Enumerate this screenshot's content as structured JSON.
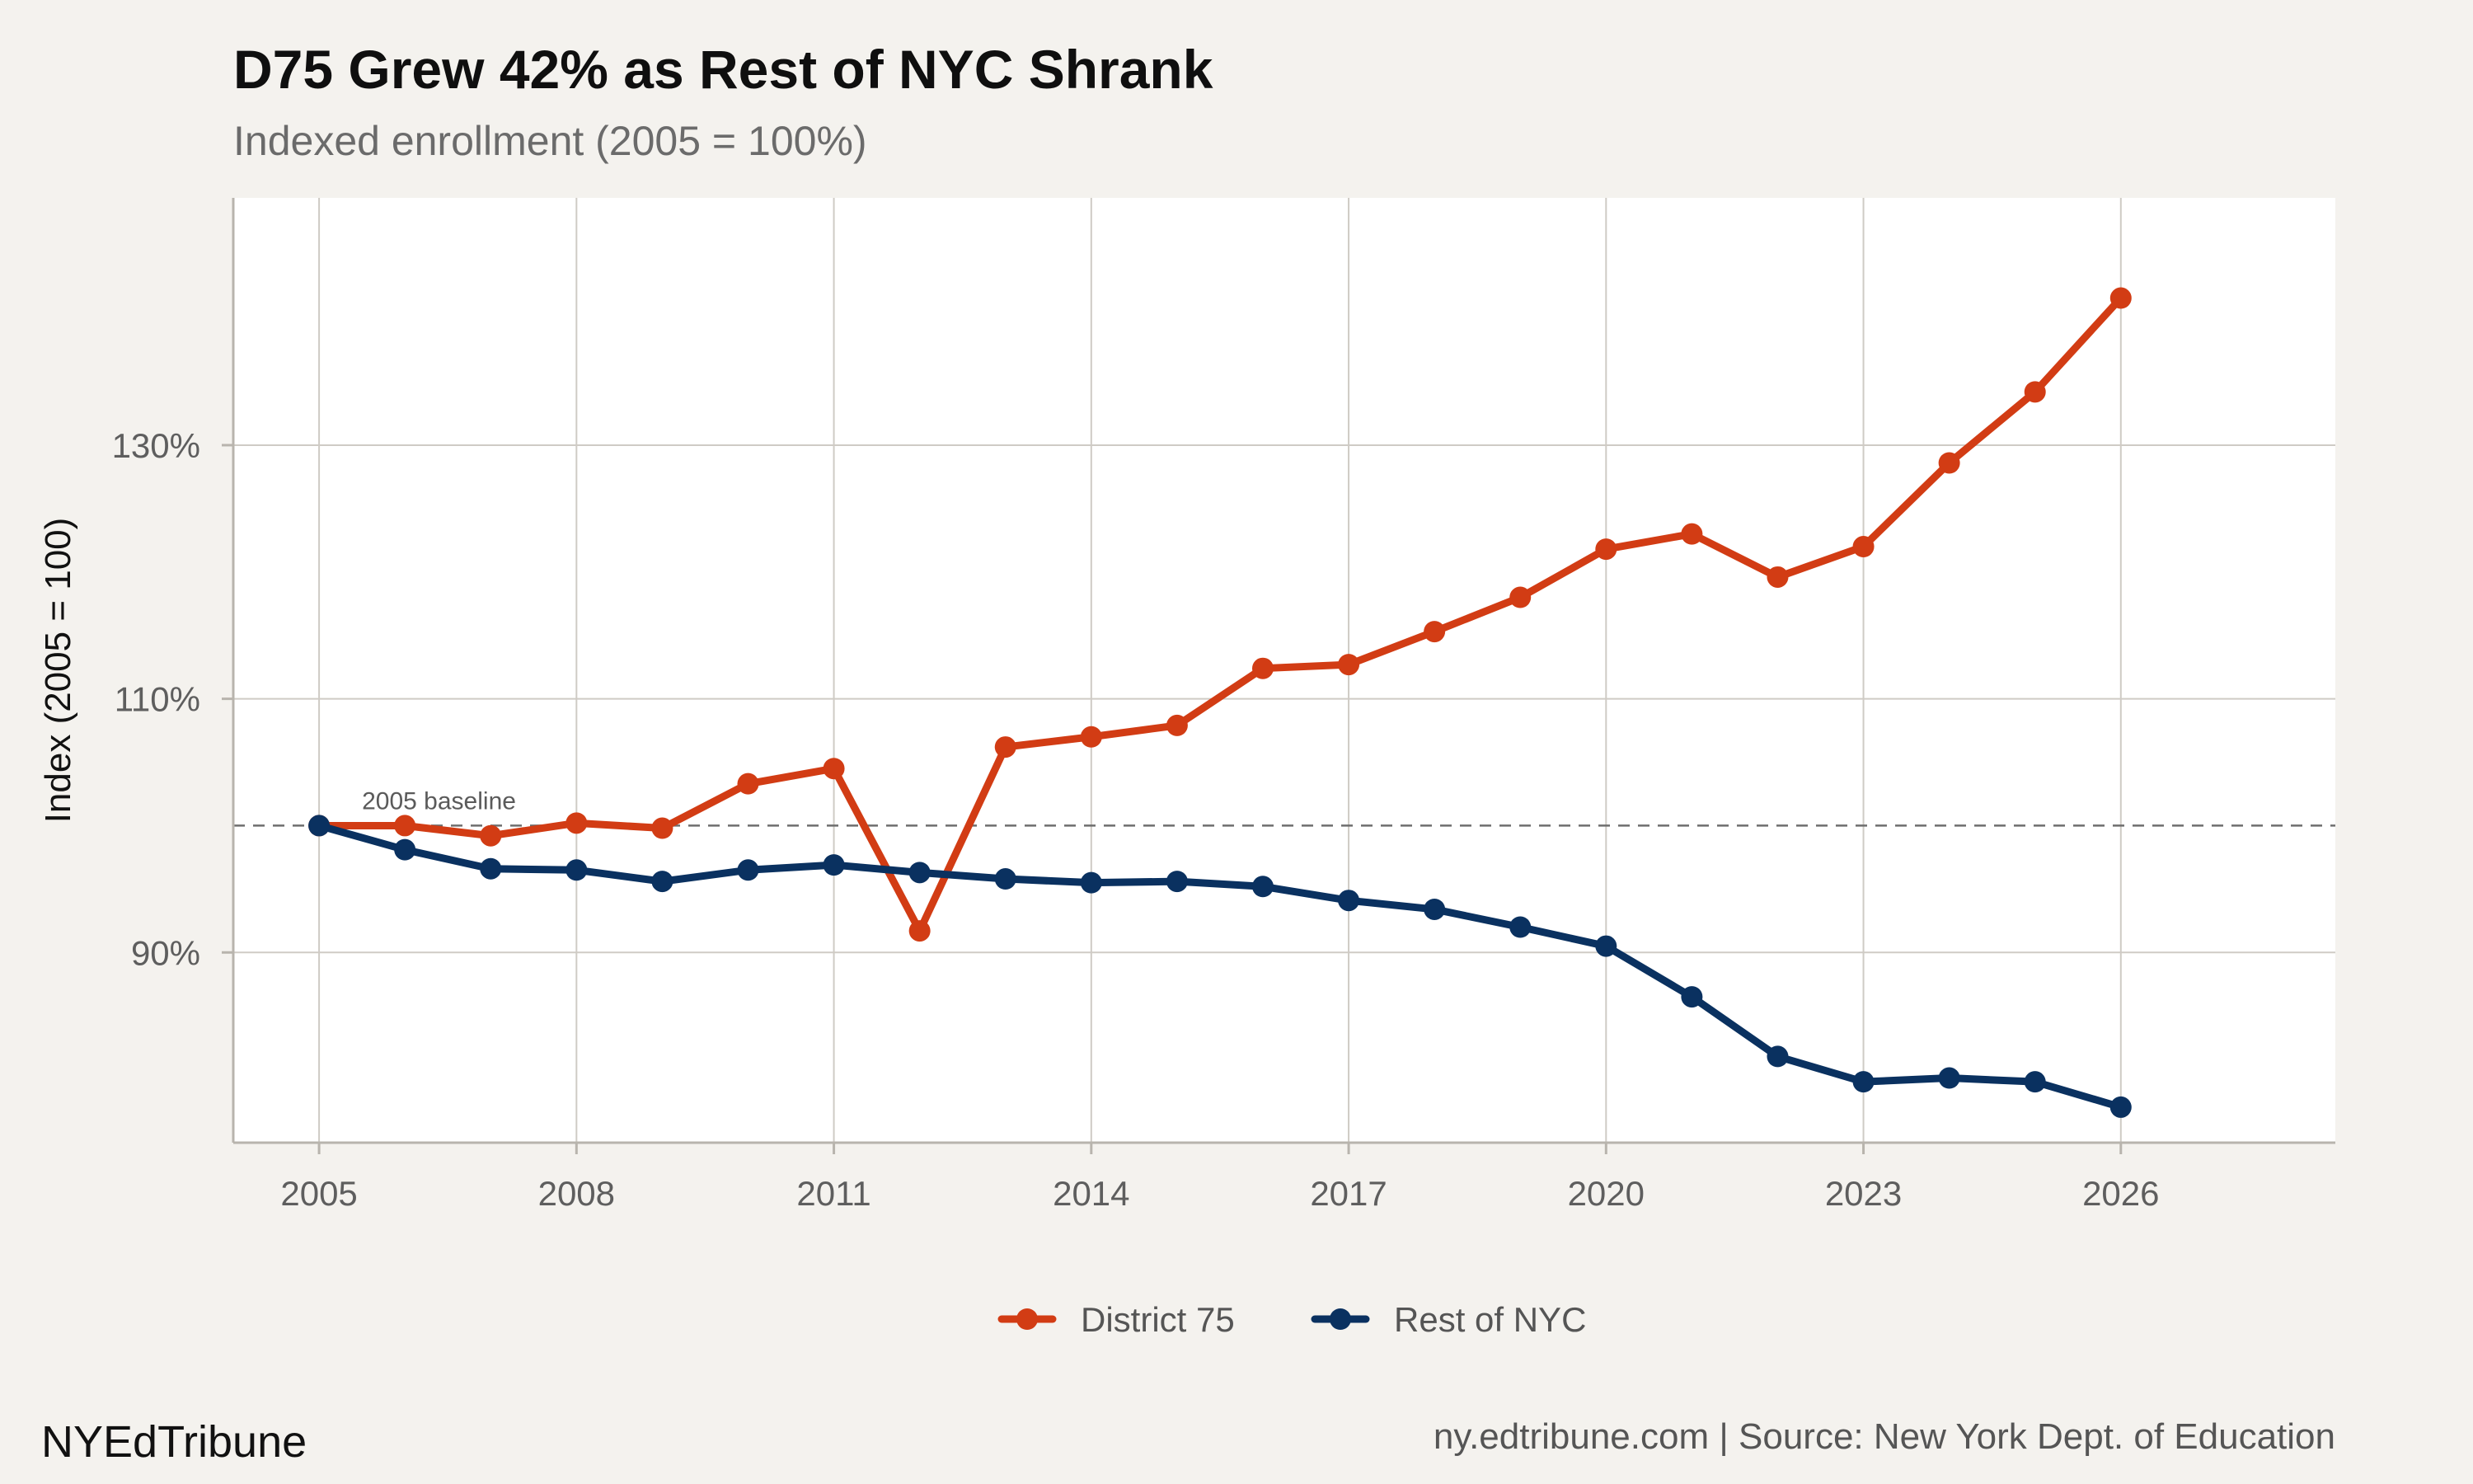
{
  "header": {
    "title": "D75 Grew 42% as Rest of NYC Shrank",
    "subtitle": "Indexed enrollment (2005 = 100%)"
  },
  "footer": {
    "brand": "NYEdTribune",
    "source": "ny.edtribune.com | Source: New York Dept. of Education"
  },
  "colors": {
    "district75": "#d23c14",
    "rest_of_nyc": "#0a3160",
    "panel": "#ffffff",
    "background": "#f4f2ee",
    "grid": "#cfcbc5",
    "baseline": "#6e6e6e"
  },
  "chart_data": {
    "type": "line",
    "title": "D75 Grew 42% as Rest of NYC Shrank",
    "subtitle": "Indexed enrollment (2005 = 100%)",
    "xlabel": "",
    "ylabel": "Index (2005 = 100)",
    "xlim": [
      2004,
      2028.5
    ],
    "ylim": [
      75,
      149.5
    ],
    "x_ticks": [
      2005,
      2008,
      2011,
      2014,
      2017,
      2020,
      2023,
      2026
    ],
    "x_tick_labels": [
      "2005",
      "2008",
      "2011",
      "2014",
      "2017",
      "2020",
      "2023",
      "2026"
    ],
    "y_ticks": [
      90,
      110,
      130
    ],
    "y_tick_labels": [
      "90%",
      "110%",
      "130%"
    ],
    "grid": true,
    "legend": "bottom",
    "x": [
      2005,
      2006,
      2007,
      2008,
      2009,
      2010,
      2011,
      2012,
      2013,
      2014,
      2015,
      2016,
      2017,
      2018,
      2019,
      2020,
      2021,
      2022,
      2023,
      2024,
      2025,
      2026
    ],
    "series": [
      {
        "name": "District 75",
        "color": "#d23c14",
        "values": [
          100.0,
          100.0,
          99.2,
          100.2,
          99.8,
          103.3,
          104.5,
          91.7,
          106.2,
          107.0,
          107.9,
          112.4,
          112.7,
          115.3,
          118.0,
          121.8,
          123.0,
          119.6,
          122.0,
          128.6,
          134.2,
          141.6
        ]
      },
      {
        "name": "Rest of NYC",
        "color": "#0a3160",
        "values": [
          100.0,
          98.1,
          96.6,
          96.5,
          95.6,
          96.5,
          96.9,
          96.3,
          95.8,
          95.5,
          95.6,
          95.2,
          94.1,
          93.4,
          92.0,
          90.5,
          86.5,
          81.8,
          79.8,
          80.1,
          79.8,
          77.8
        ]
      }
    ],
    "baseline": {
      "value": 100,
      "label": "2005 baseline"
    }
  }
}
